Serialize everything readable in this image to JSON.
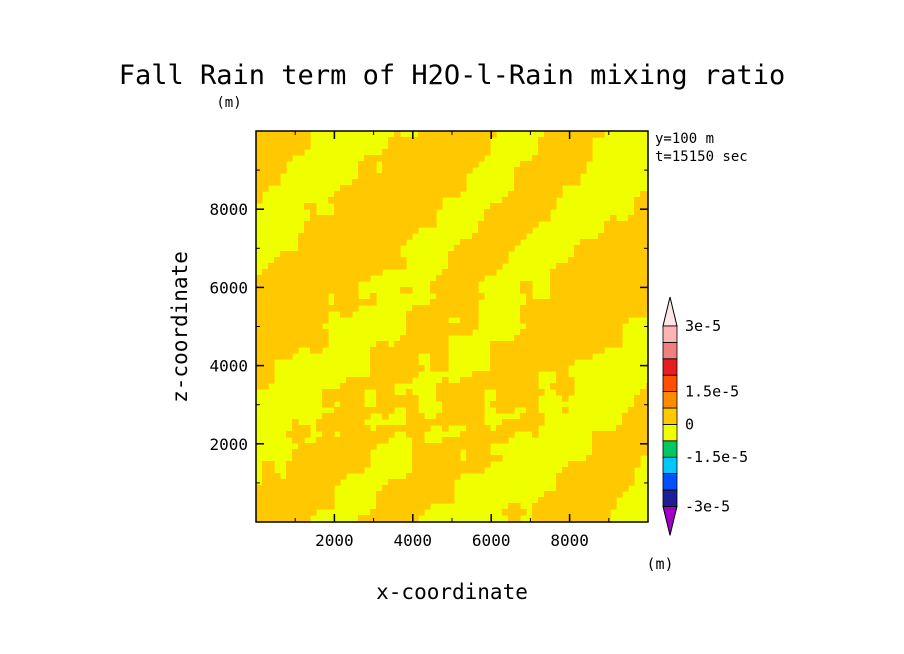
{
  "chart_data": {
    "type": "heatmap",
    "title": "Fall Rain term of H2O-l-Rain mixing ratio",
    "units_label": "(m)",
    "info_lines": [
      "y=100 m",
      "t=15150 sec"
    ],
    "xlabel": "x-coordinate",
    "ylabel": "z-coordinate",
    "xlim": [
      0,
      10000
    ],
    "ylim": [
      0,
      10000
    ],
    "xticks": [
      2000,
      4000,
      6000,
      8000
    ],
    "yticks": [
      2000,
      4000,
      6000,
      8000
    ],
    "colorbar": {
      "units_label": "(m)",
      "levels": [
        -3e-05,
        -2.25e-05,
        -1.5e-05,
        -7.5e-06,
        0,
        7.5e-06,
        1.5e-05,
        2.25e-05,
        3e-05
      ],
      "colors": [
        "#a000c8",
        "#1e1e96",
        "#0050ff",
        "#00c8ff",
        "#00c864",
        "#f0ff00",
        "#ffc800",
        "#ff8c00",
        "#ff5000",
        "#e61e1e",
        "#f08080",
        "#ffb4b4",
        "#ffe6e6"
      ],
      "tick_labels": [
        {
          "level": 3e-05,
          "label": "3e-5"
        },
        {
          "level": 1.5e-05,
          "label": "1.5e-5"
        },
        {
          "level": 0,
          "label": "0"
        },
        {
          "level": -1.5e-05,
          "label": "-1.5e-5"
        },
        {
          "level": -3e-05,
          "label": "-3e-5"
        }
      ]
    },
    "field": {
      "description_of_values": "field alternates between bands of roughly 0 to 7.5e-6 and 7.5e-6 to 1.5e-5",
      "bands": [
        {
          "color": "#f0ff00"
        },
        {
          "color": "#ffc800"
        }
      ]
    }
  }
}
